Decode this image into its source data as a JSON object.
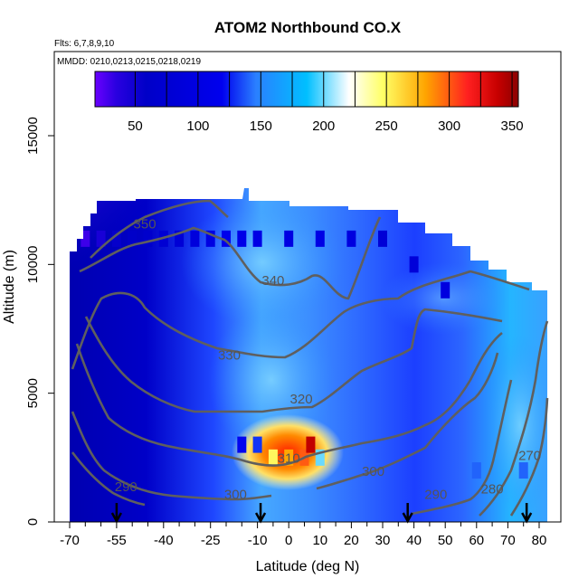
{
  "chart_data": {
    "type": "heatmap",
    "title": "ATOM2 Northbound CO.X",
    "flights_note": "Flts: 6,7,8,9,10",
    "dates_note": "MMDD: 0210,0213,0215,0218,0219",
    "xlabel": "Latitude (deg N)",
    "ylabel": "Altitude (m)",
    "xlim": [
      -70,
      80
    ],
    "ylim": [
      0,
      17500
    ],
    "x_ticks": [
      -70,
      -55,
      -40,
      -25,
      -10,
      0,
      10,
      20,
      30,
      40,
      50,
      60,
      70,
      80
    ],
    "x_tick_labels": [
      "-70",
      "-55",
      "-40",
      "-25",
      "-10",
      "0",
      "10",
      "20",
      "30",
      "40",
      "50",
      "60",
      "70",
      "80"
    ],
    "y_ticks": [
      0,
      5000,
      10000,
      15000
    ],
    "y_tick_labels": [
      "0",
      "5000",
      "10000",
      "15000"
    ],
    "colorbar": {
      "range": [
        18,
        355
      ],
      "ticks": [
        50,
        100,
        150,
        200,
        250,
        300,
        350
      ],
      "tick_labels": [
        "50",
        "100",
        "150",
        "200",
        "250",
        "300",
        "350"
      ],
      "colors": [
        "#6a00ff",
        "#0000c8",
        "#0000ee",
        "#2a7fff",
        "#00bfff",
        "#ffffff",
        "#ffff66",
        "#ffa500",
        "#ff2020",
        "#c80000",
        "#8b0000"
      ]
    },
    "grid": false,
    "legend_placement": "top",
    "cells": [
      {
        "lat": -65,
        "alt": 11000,
        "co": 30
      },
      {
        "lat": -60,
        "alt": 11000,
        "co": 45
      },
      {
        "lat": -55,
        "alt": 11000,
        "co": 55
      },
      {
        "lat": -50,
        "alt": 11000,
        "co": 60
      },
      {
        "lat": -45,
        "alt": 11000,
        "co": 65
      },
      {
        "lat": -40,
        "alt": 11000,
        "co": 75
      },
      {
        "lat": -35,
        "alt": 11000,
        "co": 80
      },
      {
        "lat": -30,
        "alt": 11000,
        "co": 90
      },
      {
        "lat": -25,
        "alt": 11000,
        "co": 100
      },
      {
        "lat": -20,
        "alt": 11000,
        "co": 115
      },
      {
        "lat": -15,
        "alt": 11000,
        "co": 110
      },
      {
        "lat": -10,
        "alt": 11000,
        "co": 105
      },
      {
        "lat": 0,
        "alt": 11000,
        "co": 100
      },
      {
        "lat": 10,
        "alt": 11000,
        "co": 105
      },
      {
        "lat": 20,
        "alt": 11000,
        "co": 95
      },
      {
        "lat": 30,
        "alt": 11000,
        "co": 80
      },
      {
        "lat": 40,
        "alt": 10000,
        "co": 85
      },
      {
        "lat": 50,
        "alt": 9000,
        "co": 95
      },
      {
        "lat": -15,
        "alt": 3000,
        "co": 120
      },
      {
        "lat": -10,
        "alt": 3000,
        "co": 130
      },
      {
        "lat": -5,
        "alt": 2500,
        "co": 250
      },
      {
        "lat": 0,
        "alt": 2500,
        "co": 280
      },
      {
        "lat": 5,
        "alt": 2500,
        "co": 300
      },
      {
        "lat": 7,
        "alt": 3000,
        "co": 340
      },
      {
        "lat": 10,
        "alt": 2500,
        "co": 200
      },
      {
        "lat": 60,
        "alt": 2000,
        "co": 140
      },
      {
        "lat": 75,
        "alt": 2000,
        "co": 140
      }
    ],
    "contour_labels": [
      {
        "text": "350",
        "lat": -46,
        "alt": 11400
      },
      {
        "text": "340",
        "lat": -5,
        "alt": 9200
      },
      {
        "text": "330",
        "lat": -19,
        "alt": 6300
      },
      {
        "text": "320",
        "lat": 4,
        "alt": 4600
      },
      {
        "text": "310",
        "lat": 0,
        "alt": 2300
      },
      {
        "text": "300",
        "lat": -17,
        "alt": 900
      },
      {
        "text": "300",
        "lat": 27,
        "alt": 1800
      },
      {
        "text": "290",
        "lat": -52,
        "alt": 1200
      },
      {
        "text": "290",
        "lat": 47,
        "alt": 900
      },
      {
        "text": "280",
        "lat": 65,
        "alt": 1100
      },
      {
        "text": "270",
        "lat": 77,
        "alt": 2400
      }
    ],
    "flight_markers_lat": [
      -55,
      -9,
      38,
      76
    ]
  }
}
